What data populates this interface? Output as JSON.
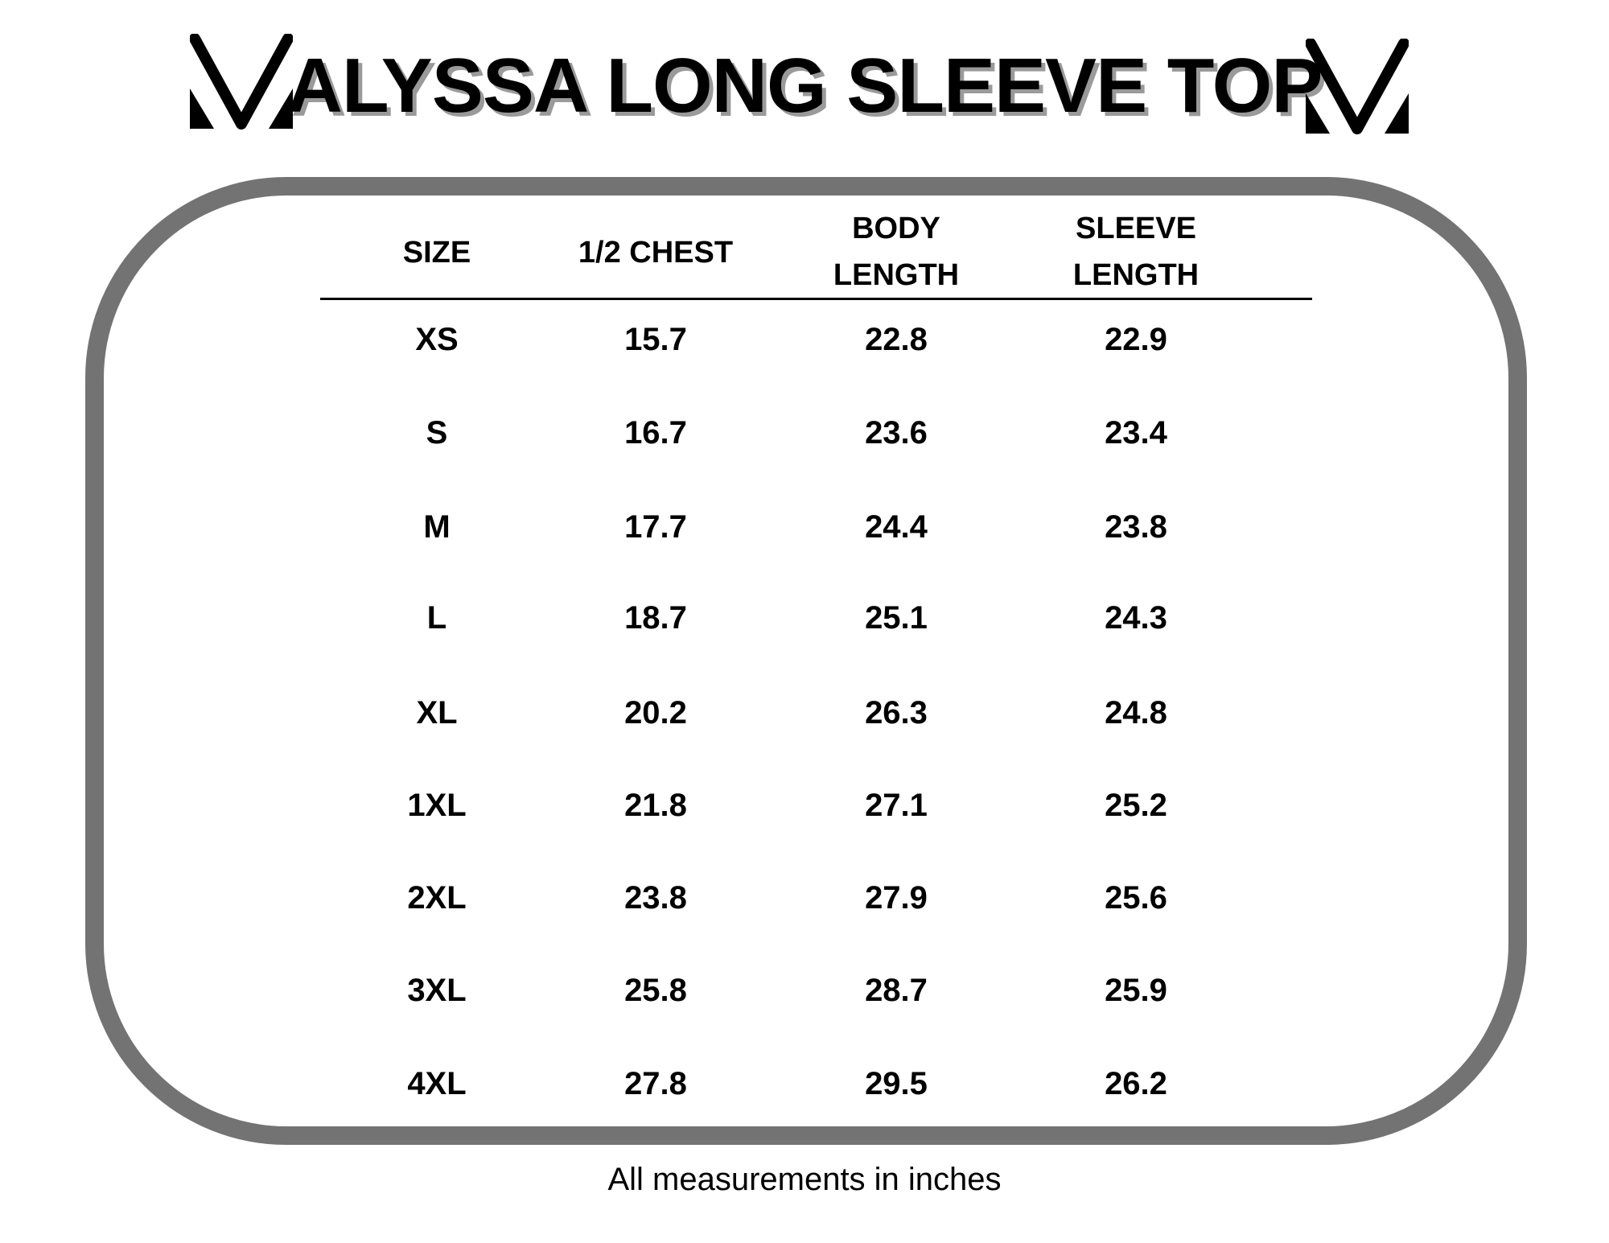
{
  "title": "ALYSSA LONG SLEEVE TOP",
  "logo_icon": "chevron-v-logo",
  "table": {
    "headers": [
      [
        "SIZE"
      ],
      [
        "1/2 CHEST"
      ],
      [
        "BODY",
        "LENGTH"
      ],
      [
        "SLEEVE",
        "LENGTH"
      ]
    ],
    "rows": [
      [
        "XS",
        "15.7",
        "22.8",
        "22.9"
      ],
      [
        "S",
        "16.7",
        "23.6",
        "23.4"
      ],
      [
        "M",
        "17.7",
        "24.4",
        "23.8"
      ],
      [
        "L",
        "18.7",
        "25.1",
        "24.3"
      ],
      [
        "XL",
        "20.2",
        "26.3",
        "24.8"
      ],
      [
        "1XL",
        "21.8",
        "27.1",
        "25.2"
      ],
      [
        "2XL",
        "23.8",
        "27.9",
        "25.6"
      ],
      [
        "3XL",
        "25.8",
        "28.7",
        "25.9"
      ],
      [
        "4XL",
        "27.8",
        "29.5",
        "26.2"
      ]
    ]
  },
  "footer": "All measurements in inches",
  "colors": {
    "border": "#737373",
    "title_shadow": "#9a9a9a",
    "text": "#000000"
  }
}
